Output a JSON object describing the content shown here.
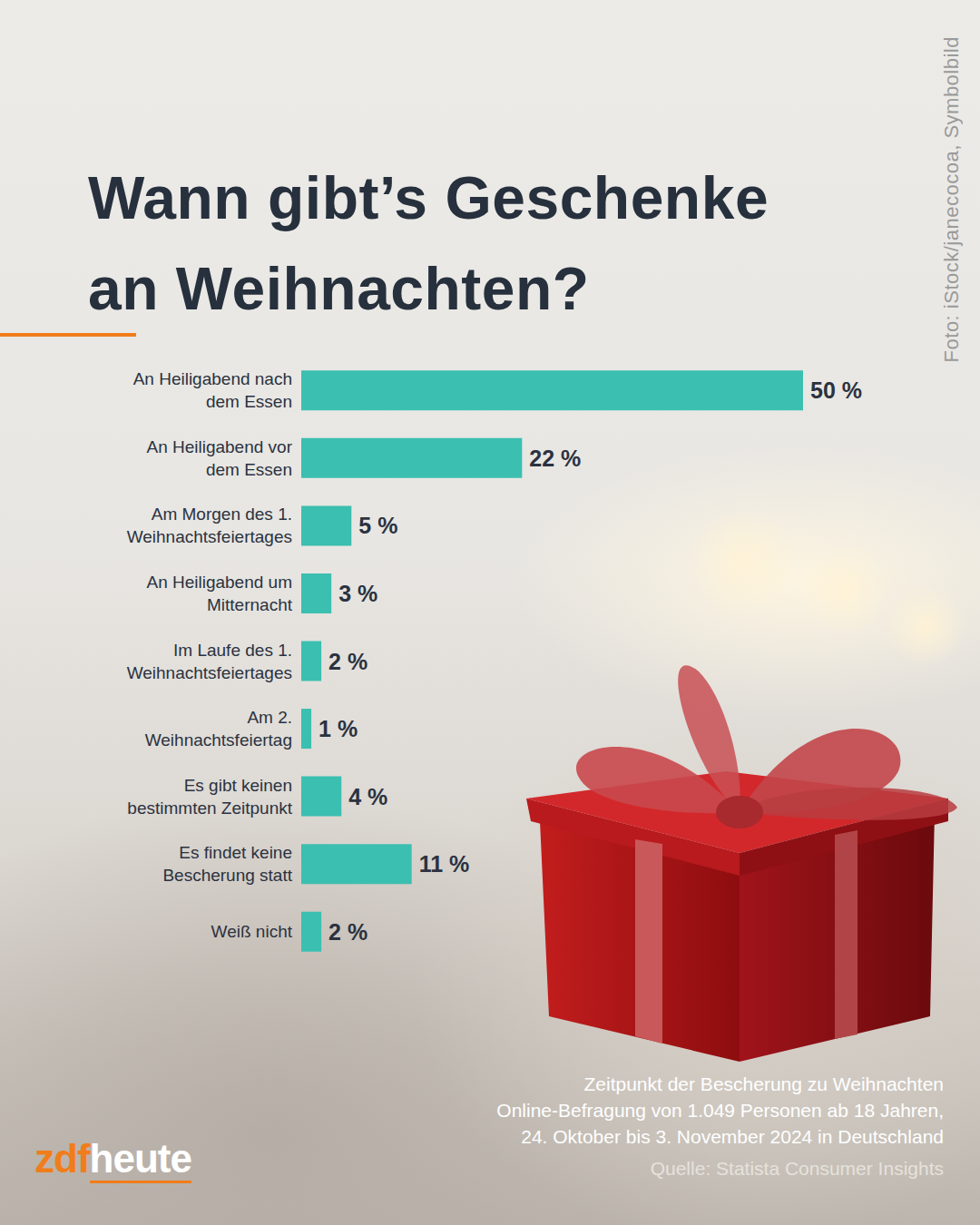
{
  "chart_data": {
    "type": "bar",
    "orientation": "horizontal",
    "title": "Wann gibt’s Geschenke\nan Weihnachten?",
    "categories": [
      "An Heiligabend nach\ndem Essen",
      "An Heiligabend vor\ndem Essen",
      "Am Morgen des 1.\nWeihnachtsfeiertages",
      "An Heiligabend um\nMitternacht",
      "Im Laufe des 1.\nWeihnachtsfeiertages",
      "Am 2.\nWeihnachtsfeiertag",
      "Es gibt keinen\nbestimmten Zeitpunkt",
      "Es findet keine\nBescherung statt",
      "Weiß nicht"
    ],
    "values": [
      50,
      22,
      5,
      3,
      2,
      1,
      4,
      11,
      2
    ],
    "value_labels": [
      "50 %",
      "22 %",
      "5 %",
      "3 %",
      "2 %",
      "1 %",
      "4 %",
      "11 %",
      "2 %"
    ],
    "color": "#3bbfb0",
    "xlim": [
      0,
      50
    ],
    "data_labels": true,
    "tick_labels": "y",
    "grid": false,
    "notes": [
      "Zeitpunkt der Bescherung zu Weihnachten",
      "Online-Befragung von 1.049 Personen ab 18 Jahren,",
      "24. Oktober bis 3. November 2024 in Deutschland"
    ],
    "source": "Quelle: Statista Consumer Insights",
    "credit": "Foto: iStock/janecocoa, Symbolbild",
    "logo": [
      "zdf",
      "heute"
    ]
  }
}
